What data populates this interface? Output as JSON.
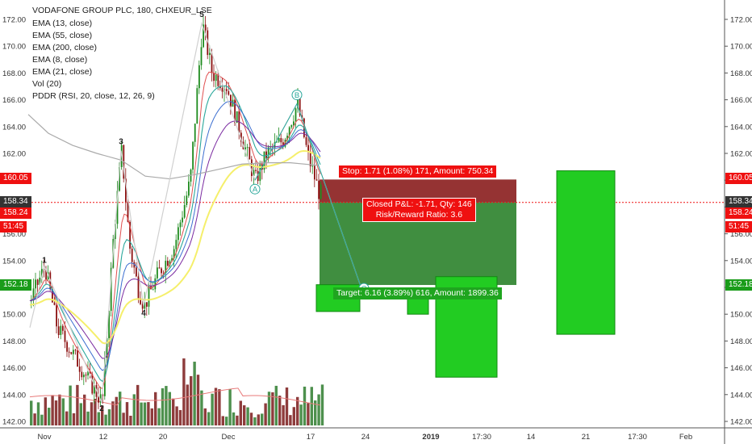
{
  "header": {
    "symbol_line": "VODAFONE GROUP PLC, 180, CHXEUR_LSE",
    "indicators": [
      "EMA (13, close)",
      "EMA (55, close)",
      "EMA (200, close)",
      "EMA (8, close)",
      "EMA (21, close)",
      "Vol (20)",
      "PDDR (RSI, 20, close, 12, 26, 9)"
    ]
  },
  "price_axis": {
    "ticks": [
      "172.00",
      "170.00",
      "168.00",
      "166.00",
      "164.00",
      "162.00",
      "160.00",
      "158.00",
      "156.00",
      "154.00",
      "152.00",
      "150.00",
      "148.00",
      "146.00",
      "144.00",
      "142.00"
    ],
    "ymin": 141.5,
    "ymax": 172.8,
    "tags": {
      "stop": {
        "text": "160.05",
        "value": 160.05,
        "color": "#ef1010"
      },
      "current": {
        "text": "158.34",
        "value": 158.34,
        "color": "#333333"
      },
      "last": {
        "text": "158.24",
        "value": 158.24,
        "color": "#ef1010"
      },
      "countdown": {
        "text": "51:45",
        "color": "#ef1010"
      },
      "target": {
        "text": "152.18",
        "value": 152.18,
        "color": "#1a9c1a"
      }
    }
  },
  "time_axis": {
    "labels": [
      "Nov",
      "12",
      "20",
      "Dec",
      "17",
      "24",
      "2019",
      "17:30",
      "14",
      "21",
      "17:30",
      "Feb"
    ]
  },
  "waves": {
    "points": [
      {
        "label": "1",
        "value": 153.6
      },
      {
        "label": "2",
        "value": 143.4
      },
      {
        "label": "3",
        "value": 162.2
      },
      {
        "label": "4",
        "value": 150.6
      },
      {
        "label": "5",
        "value": 171.7
      },
      {
        "label": "A",
        "value": 160.0
      },
      {
        "label": "B",
        "value": 165.7
      },
      {
        "label": "C",
        "value": 151.4
      }
    ]
  },
  "position": {
    "stop_label": "Stop: 1.71 (1.08%) 171, Amount: 750.34",
    "closed_label": "Closed P&L: -1.71, Qty: 146",
    "rr_label": "Risk/Reward Ratio: 3.6",
    "target_label": "Target: 6.16 (3.89%) 616, Amount: 1899.36",
    "entry": 158.34,
    "stop": 160.05,
    "target": 152.18
  },
  "colors": {
    "up": "#2e8b2e",
    "down": "#8b1a1a",
    "ema13": "#2aa79b",
    "ema55": "#7a2aa0",
    "ema200": "#aaaaaa",
    "ema8": "#e05050",
    "ema21": "#f5ef6b",
    "green_box": "#22cc22",
    "red_box": "#7a0000"
  }
}
